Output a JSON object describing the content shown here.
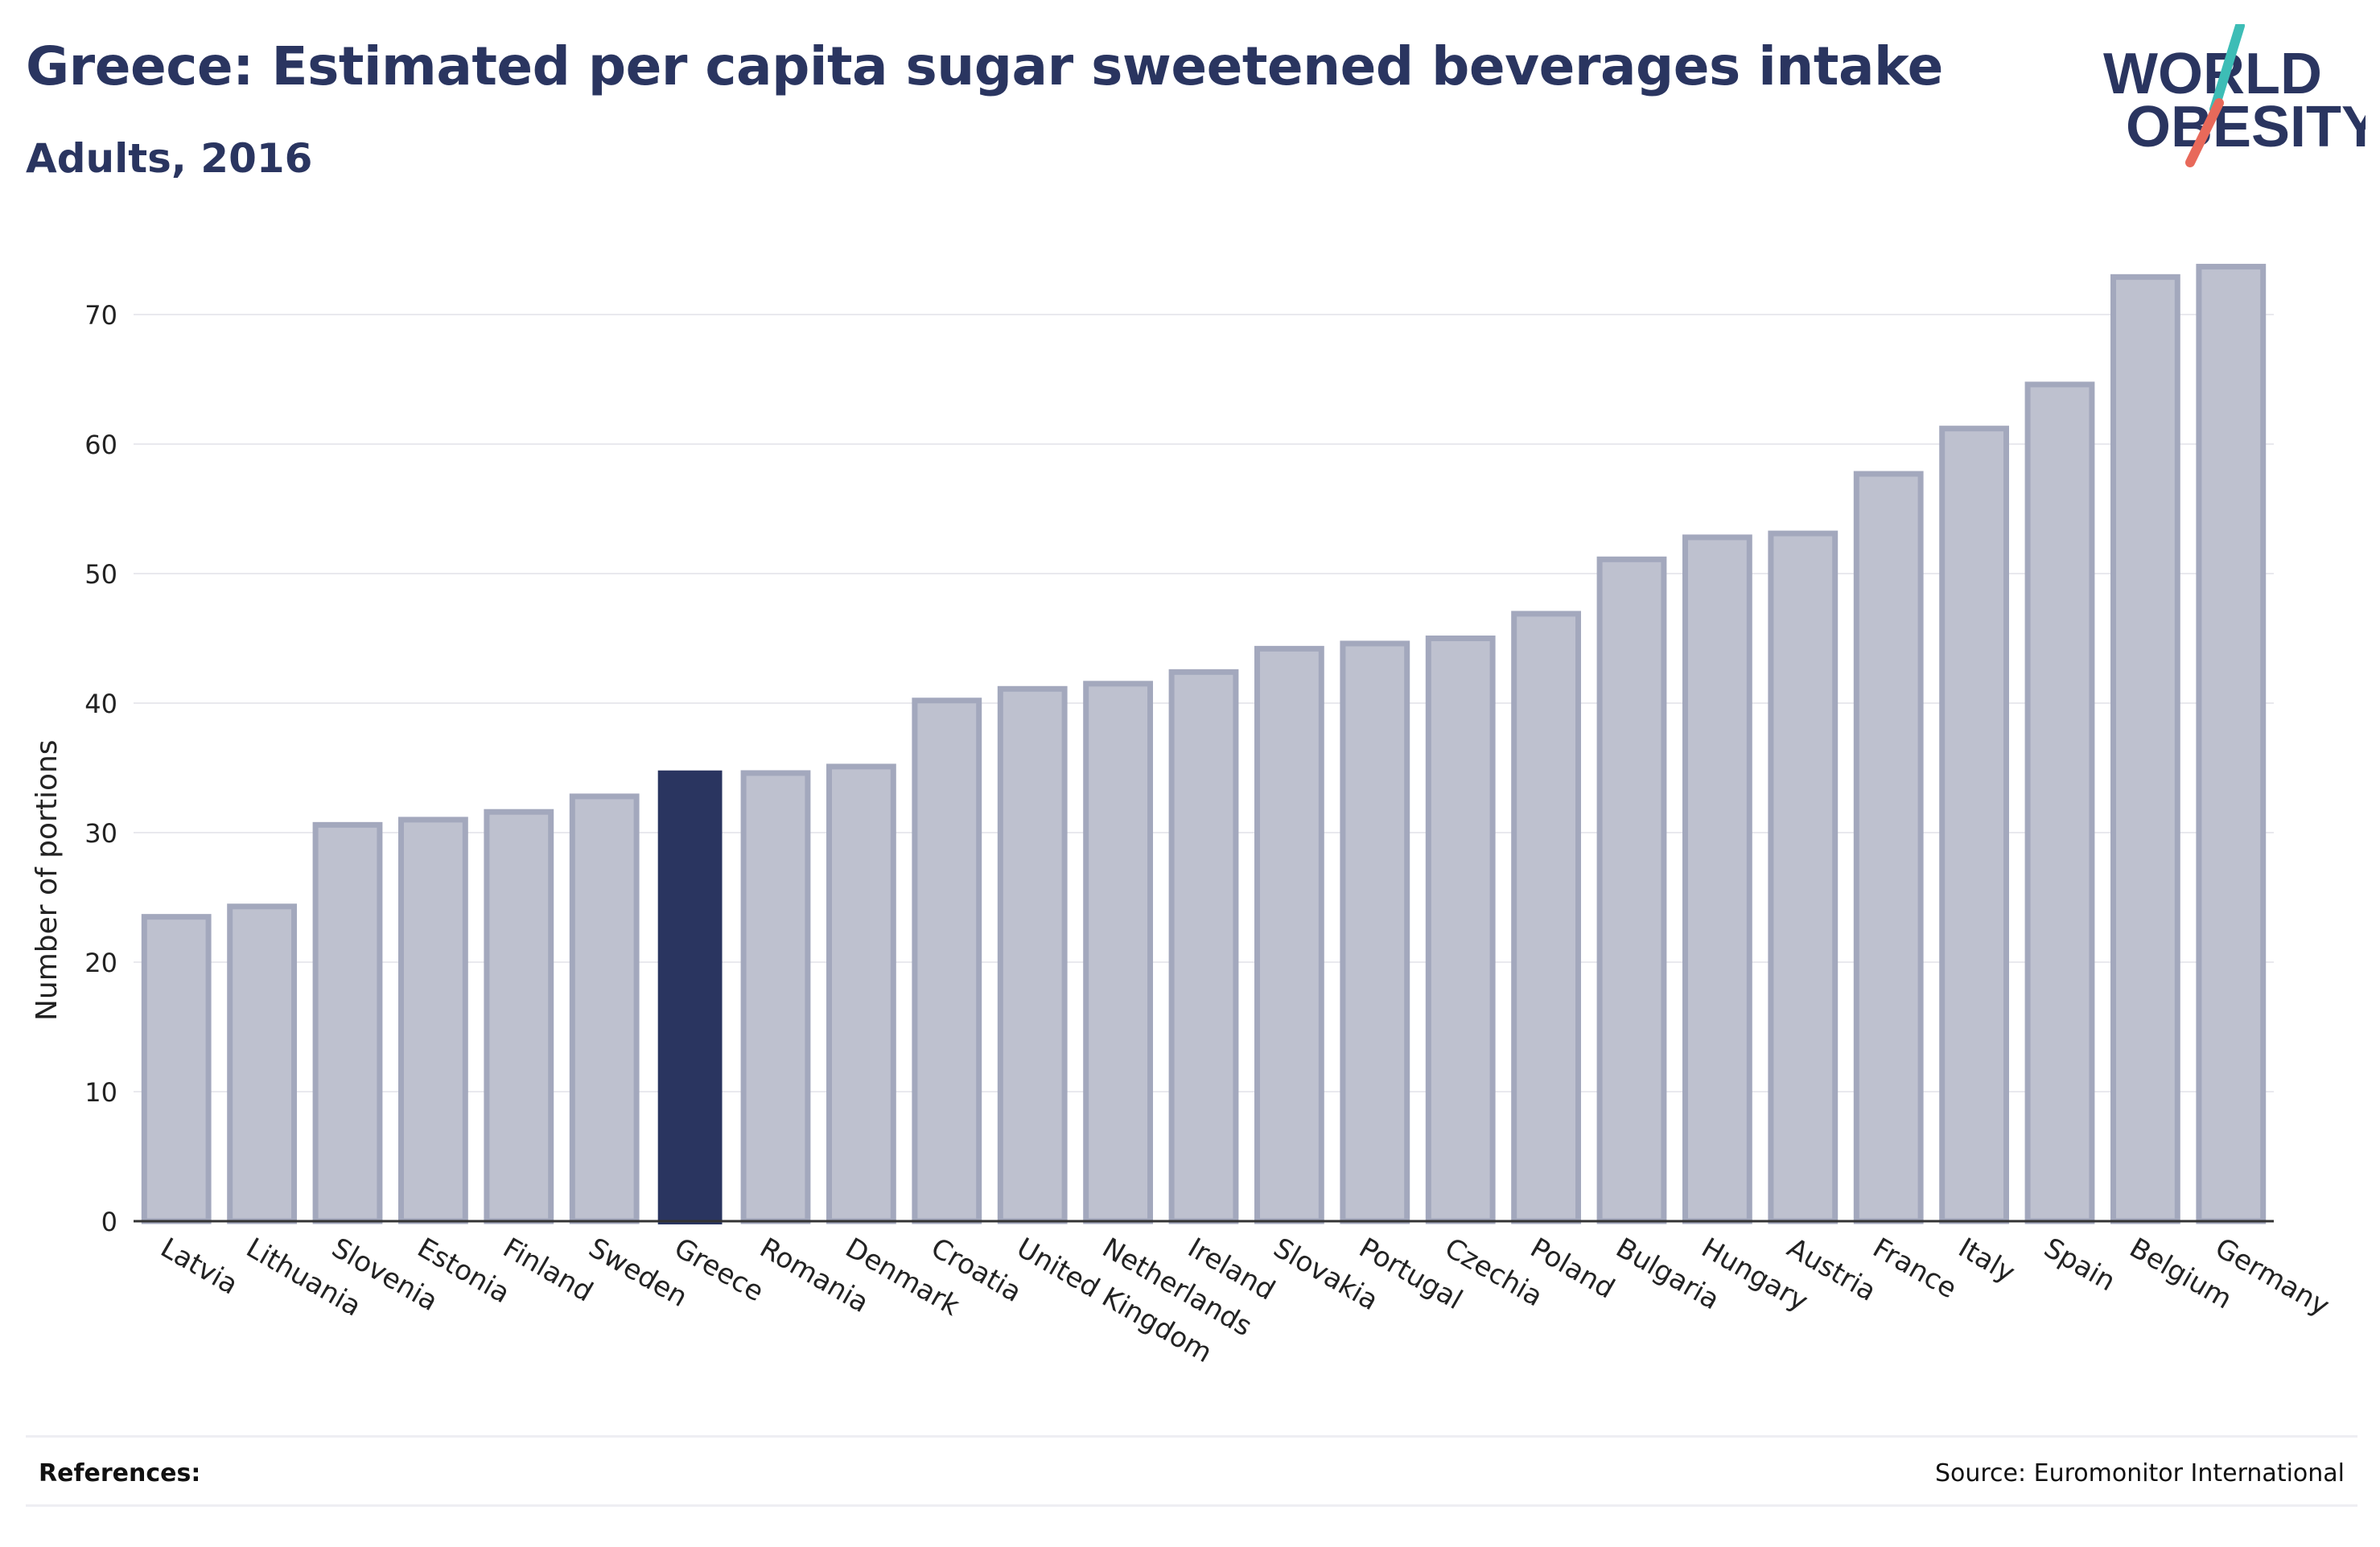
{
  "header": {
    "title": "Greece: Estimated per capita sugar sweetened beverages intake",
    "subtitle": "Adults, 2016"
  },
  "logo": {
    "line1": "WORLD",
    "line2": "OBESITY",
    "text_color": "#2a3560",
    "slash_top_color": "#3dbdb6",
    "slash_bottom_color": "#e8695a"
  },
  "footer": {
    "references_label": "References:",
    "source": "Source: Euromonitor International"
  },
  "colors": {
    "bar_fill": "#bec1cf",
    "bar_stroke": "#a3a8bd",
    "highlight_fill": "#2a3560",
    "axis": "#333333",
    "grid": "#e9e9ee",
    "text": "#222222"
  },
  "chart_data": {
    "type": "bar",
    "title": "Greece: Estimated per capita sugar sweetened beverages intake",
    "subtitle": "Adults, 2016",
    "xlabel": "",
    "ylabel": "Number of portions",
    "ylim": [
      0,
      75
    ],
    "yticks": [
      0,
      10,
      20,
      30,
      40,
      50,
      60,
      70
    ],
    "grid": true,
    "highlight": "Greece",
    "categories": [
      "Latvia",
      "Lithuania",
      "Slovenia",
      "Estonia",
      "Finland",
      "Sweden",
      "Greece",
      "Romania",
      "Denmark",
      "Croatia",
      "United Kingdom",
      "Netherlands",
      "Ireland",
      "Slovakia",
      "Portugal",
      "Czechia",
      "Poland",
      "Bulgaria",
      "Hungary",
      "Austria",
      "France",
      "Italy",
      "Spain",
      "Belgium",
      "Germany"
    ],
    "values": [
      23.5,
      24.3,
      30.6,
      31.0,
      31.6,
      32.8,
      34.8,
      34.6,
      35.1,
      40.2,
      41.1,
      41.5,
      42.4,
      44.2,
      44.6,
      45.0,
      46.9,
      51.1,
      52.8,
      53.1,
      57.7,
      61.2,
      64.6,
      72.9,
      73.7
    ]
  }
}
